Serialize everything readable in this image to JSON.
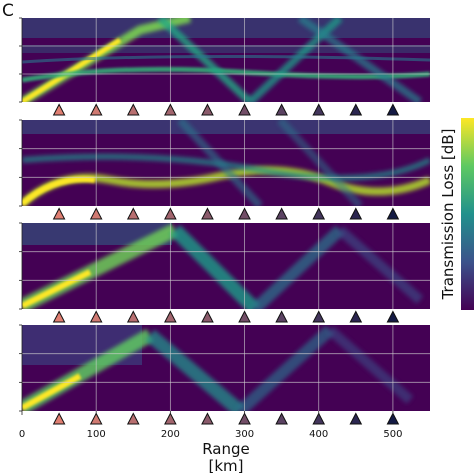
{
  "panel_letter": "C",
  "chart_data": {
    "type": "heatmap",
    "panels": 4,
    "xlabel": "Range\n[km]",
    "xlim": [
      0,
      550
    ],
    "xticks": [
      0,
      100,
      200,
      300,
      400,
      500
    ],
    "grid": true,
    "colorbar_label": "Transmission Loss [dB]",
    "colormap": "viridis",
    "station_ranges_km": [
      50,
      100,
      150,
      200,
      250,
      300,
      350,
      400,
      450,
      500
    ],
    "station_colors": [
      "#e07f72",
      "#d07a72",
      "#b86f70",
      "#a2656e",
      "#8a5a6b",
      "#724e67",
      "#5b4262",
      "#43355b",
      "#2b2650",
      "#141a44"
    ]
  }
}
